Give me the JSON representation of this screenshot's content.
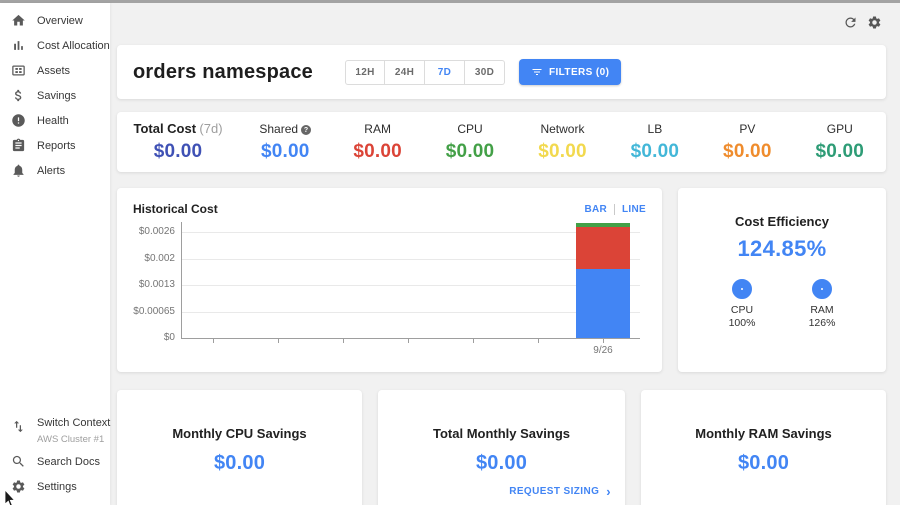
{
  "topbar": {
    "icons": [
      "refresh-icon",
      "settings-gear-icon"
    ]
  },
  "sidebar": {
    "items": [
      {
        "label": "Overview",
        "icon": "home-icon"
      },
      {
        "label": "Cost Allocation",
        "icon": "bar-chart-icon"
      },
      {
        "label": "Assets",
        "icon": "assets-grid-icon"
      },
      {
        "label": "Savings",
        "icon": "dollar-icon"
      },
      {
        "label": "Health",
        "icon": "health-alert-icon"
      },
      {
        "label": "Reports",
        "icon": "reports-clipboard-icon"
      },
      {
        "label": "Alerts",
        "icon": "bell-icon"
      }
    ],
    "footer": {
      "switch_label": "Switch Context",
      "switch_sub": "AWS Cluster #1",
      "search_label": "Search Docs",
      "settings_label": "Settings"
    }
  },
  "header": {
    "title_bold": "orders",
    "title_rest": "namespace",
    "ranges": [
      "12H",
      "24H",
      "7D",
      "30D"
    ],
    "selected_range": "7D",
    "filters_label": "FILTERS (0)"
  },
  "summary": {
    "metrics": [
      {
        "label": "Total Cost",
        "suffix": "(7d)",
        "value": "$0.00",
        "color": "#3f51b5"
      },
      {
        "label": "Shared",
        "value": "$0.00",
        "color": "#4285f4",
        "has_info": true
      },
      {
        "label": "RAM",
        "value": "$0.00",
        "color": "#db4437"
      },
      {
        "label": "CPU",
        "value": "$0.00",
        "color": "#43a047"
      },
      {
        "label": "Network",
        "value": "$0.00",
        "color": "#f2d94e"
      },
      {
        "label": "LB",
        "value": "$0.00",
        "color": "#43b7d8"
      },
      {
        "label": "PV",
        "value": "$0.00",
        "color": "#ef8c2d"
      },
      {
        "label": "GPU",
        "value": "$0.00",
        "color": "#2e9c76"
      }
    ]
  },
  "historical": {
    "title": "Historical Cost",
    "toggles": [
      "BAR",
      "LINE"
    ]
  },
  "efficiency": {
    "title": "Cost Efficiency",
    "value": "124.85%",
    "ring_color": "#4285f4",
    "gauges": [
      {
        "label": "CPU",
        "pct": "100%"
      },
      {
        "label": "RAM",
        "pct": "126%"
      }
    ]
  },
  "savings_cards": [
    {
      "title": "Monthly CPU Savings",
      "value": "$0.00"
    },
    {
      "title": "Total Monthly Savings",
      "value": "$0.00",
      "link": "REQUEST SIZING"
    },
    {
      "title": "Monthly RAM Savings",
      "value": "$0.00"
    }
  ],
  "glyphs": {
    "info": "?",
    "chevron": "›"
  },
  "chart_data": {
    "type": "bar",
    "stacked": true,
    "title": "Historical Cost",
    "x": [
      "9/26"
    ],
    "x_tick_count": 7,
    "series": [
      {
        "name": "blue",
        "color": "#4285f4",
        "values": [
          0.0017
        ]
      },
      {
        "name": "red",
        "color": "#db4437",
        "values": [
          0.00103
        ]
      },
      {
        "name": "green",
        "color": "#43a047",
        "values": [
          0.0001
        ]
      }
    ],
    "y_ticks": [
      "$0.0026",
      "$0.002",
      "$0.0013",
      "$0.00065",
      "$0"
    ],
    "ylim": [
      0,
      0.0026
    ],
    "grid": "horizontal",
    "legend": "none"
  }
}
